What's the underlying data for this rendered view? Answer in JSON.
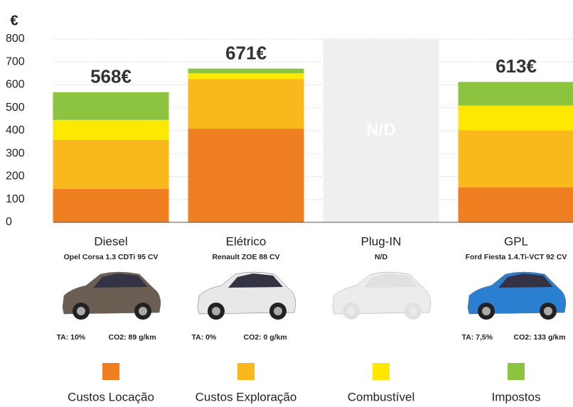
{
  "chart_data": {
    "type": "stacked-bar",
    "y_label": "€",
    "categories": [
      "Diesel",
      "Elétrico",
      "Plug-IN",
      "GPL"
    ],
    "models": [
      "Opel Corsa 1.3 CDTi 95 CV",
      "Renault ZOE 88 CV",
      "N/D",
      "Ford Fiesta 1.4.Ti-VCT 92 CV"
    ],
    "ta": [
      "TA: 10%",
      "TA: 0%",
      null,
      "TA: 7,5%"
    ],
    "co2": [
      "CO2: 89 g/km",
      "CO2: 0 g/km",
      null,
      "CO2: 133 g/km"
    ],
    "totals": [
      568,
      671,
      null,
      613
    ],
    "total_labels": [
      "568€",
      "671€",
      null,
      "613€"
    ],
    "bar_notes": [
      null,
      null,
      "N/D",
      null
    ],
    "series": [
      {
        "name": "Custos Locação",
        "color": "#f07f22",
        "values": [
          146,
          409,
          null,
          152
        ]
      },
      {
        "name": "Custos Exploração",
        "color": "#f9b91c",
        "values": [
          214,
          217,
          null,
          250
        ]
      },
      {
        "name": "Combustível",
        "color": "#fde800",
        "values": [
          87,
          25,
          null,
          108
        ]
      },
      {
        "name": "Impostos",
        "color": "#8cc43f",
        "values": [
          121,
          20,
          null,
          103
        ]
      }
    ],
    "ylim": [
      0,
      800
    ],
    "yticks": [
      0,
      100,
      200,
      300,
      400,
      500,
      600,
      700,
      800
    ],
    "grid": true
  }
}
